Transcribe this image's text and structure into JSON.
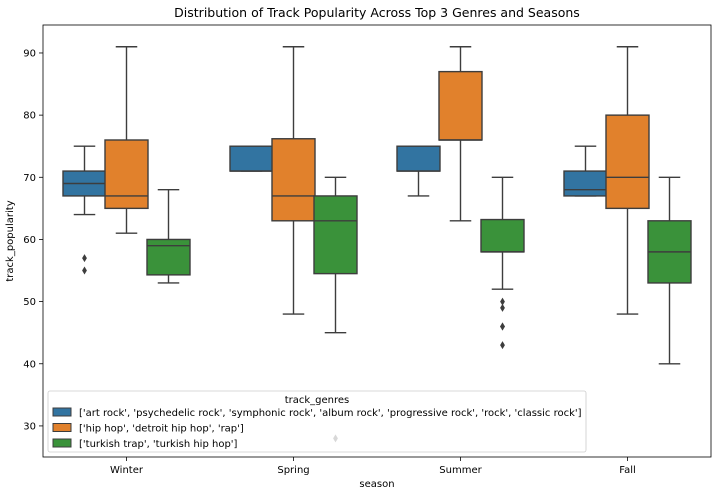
{
  "chart_data": {
    "type": "boxplot",
    "title": "Distribution of Track Popularity Across Top 3 Genres and Seasons",
    "xlabel": "season",
    "ylabel": "track_popularity",
    "categories": [
      "Winter",
      "Spring",
      "Summer",
      "Fall"
    ],
    "y_ticks": [
      30,
      40,
      50,
      60,
      70,
      80,
      90
    ],
    "ylim": [
      25,
      94.5
    ],
    "grid": false,
    "legend": {
      "title": "track_genres",
      "placement": "lower-left"
    },
    "series": [
      {
        "name": "['art rock', 'psychedelic rock', 'symphonic rock', 'album rock', 'progressive rock', 'rock', 'classic rock']",
        "color": "#3274a1",
        "boxes": [
          {
            "min": 64,
            "q1": 67,
            "median": 69,
            "q3": 71,
            "max": 75,
            "outliers": [
              57,
              55
            ]
          },
          {
            "min": 71,
            "q1": 71,
            "median": 71,
            "q3": 75,
            "max": 75,
            "outliers": []
          },
          {
            "min": 67,
            "q1": 71,
            "median": 71,
            "q3": 75,
            "max": 75,
            "outliers": []
          },
          {
            "min": 67,
            "q1": 67,
            "median": 68,
            "q3": 71,
            "max": 75,
            "outliers": []
          }
        ]
      },
      {
        "name": "['hip hop', 'detroit hip hop', 'rap']",
        "color": "#e1812c",
        "boxes": [
          {
            "min": 61,
            "q1": 65,
            "median": 67,
            "q3": 76,
            "max": 91,
            "outliers": []
          },
          {
            "min": 48,
            "q1": 63,
            "median": 67,
            "q3": 76.2,
            "max": 91,
            "outliers": []
          },
          {
            "min": 63,
            "q1": 76,
            "median": 76,
            "q3": 87,
            "max": 91,
            "outliers": []
          },
          {
            "min": 48,
            "q1": 65,
            "median": 70,
            "q3": 80,
            "max": 91,
            "outliers": []
          }
        ]
      },
      {
        "name": "['turkish trap', 'turkish hip hop']",
        "color": "#3a923a",
        "boxes": [
          {
            "min": 53,
            "q1": 54.3,
            "median": 59,
            "q3": 60,
            "max": 68,
            "outliers": []
          },
          {
            "min": 45,
            "q1": 54.5,
            "median": 63,
            "q3": 67,
            "max": 70,
            "outliers": [
              28
            ]
          },
          {
            "min": 52,
            "q1": 58,
            "median": 58,
            "q3": 63.2,
            "max": 70,
            "outliers": [
              50,
              49,
              46,
              46,
              43
            ]
          },
          {
            "min": 40,
            "q1": 53,
            "median": 58,
            "q3": 63,
            "max": 70,
            "outliers": []
          }
        ]
      }
    ]
  }
}
